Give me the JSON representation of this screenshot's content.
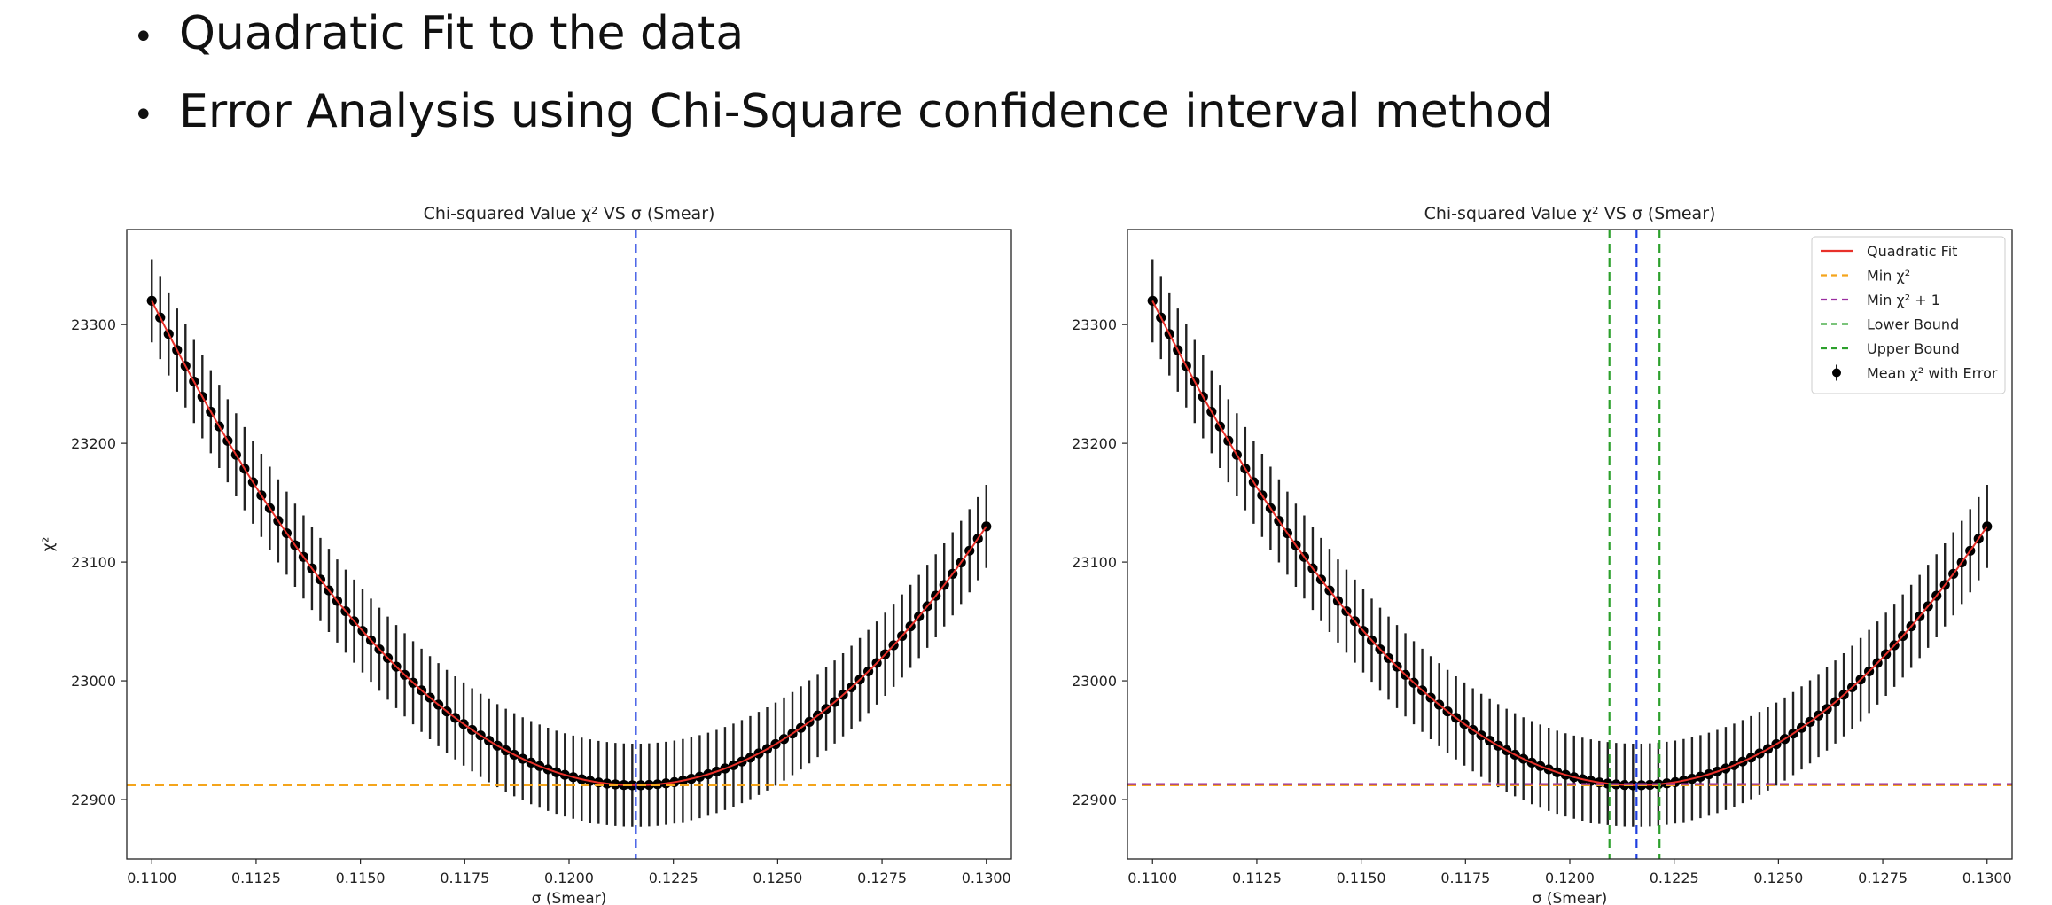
{
  "bullets": [
    "Quadratic Fit to the data",
    "Error Analysis using Chi-Square confidence interval method"
  ],
  "bullet_symbol": "•",
  "colors": {
    "data": "#000000",
    "errorbar": "#222222",
    "fit": "#e8312a",
    "min_line": "#f4a51c",
    "min_plus_one_line": "#9a2ea0",
    "bound_lines": "#2ca02c",
    "center_line": "#1f3fe0"
  },
  "chart_data": [
    {
      "type": "scatter",
      "title": "Chi-squared Value χ² VS σ (Smear)",
      "xlabel": "σ (Smear)",
      "ylabel": "χ²",
      "xlim": [
        0.1094,
        0.1306
      ],
      "ylim": [
        22850,
        23380
      ],
      "xticks": [
        "0.1100",
        "0.1125",
        "0.1150",
        "0.1175",
        "0.1200",
        "0.1225",
        "0.1250",
        "0.1275",
        "0.1300"
      ],
      "yticks": [
        "22900",
        "23000",
        "23100",
        "23200",
        "23300"
      ],
      "grid": false,
      "fit": {
        "model": "quadratic",
        "x_min": 0.1216,
        "chi2_min": 22912,
        "chi2_at_0_110": 23320,
        "chi2_at_0_130": 23130
      },
      "data_series": {
        "name": "Mean χ² with Error",
        "x_start": 0.11,
        "x_end": 0.13,
        "n_points": 100,
        "error": 35
      },
      "vlines": [
        {
          "x": 0.1216,
          "color": "center_line"
        }
      ],
      "hlines": [
        {
          "y": 22912,
          "color": "min_line"
        }
      ],
      "legend": null
    },
    {
      "type": "scatter",
      "title": "Chi-squared Value χ² VS σ (Smear)",
      "xlabel": "σ (Smear)",
      "ylabel": "",
      "xlim": [
        0.1094,
        0.1306
      ],
      "ylim": [
        22850,
        23380
      ],
      "xticks": [
        "0.1100",
        "0.1125",
        "0.1150",
        "0.1175",
        "0.1200",
        "0.1225",
        "0.1250",
        "0.1275",
        "0.1300"
      ],
      "yticks": [
        "22900",
        "23000",
        "23100",
        "23200",
        "23300"
      ],
      "grid": false,
      "fit": {
        "model": "quadratic",
        "x_min": 0.1216,
        "chi2_min": 22912,
        "chi2_at_0_110": 23320,
        "chi2_at_0_130": 23130
      },
      "data_series": {
        "name": "Mean χ² with Error",
        "x_start": 0.11,
        "x_end": 0.13,
        "n_points": 100,
        "error": 35
      },
      "vlines": [
        {
          "x": 0.12095,
          "color": "bound_lines"
        },
        {
          "x": 0.1216,
          "color": "center_line"
        },
        {
          "x": 0.12215,
          "color": "bound_lines"
        }
      ],
      "hlines": [
        {
          "y": 22912,
          "color": "min_line"
        },
        {
          "y": 22913,
          "color": "min_plus_one_line"
        }
      ],
      "legend": {
        "position": "upper right",
        "entries": [
          {
            "label": "Quadratic Fit",
            "style": "solid",
            "color": "fit"
          },
          {
            "label": "Min χ²",
            "style": "dashed",
            "color": "min_line"
          },
          {
            "label": "Min χ² + 1",
            "style": "dashed",
            "color": "min_plus_one_line"
          },
          {
            "label": "Lower Bound",
            "style": "dashed",
            "color": "bound_lines"
          },
          {
            "label": "Upper Bound",
            "style": "dashed",
            "color": "bound_lines"
          },
          {
            "label": "Mean χ² with Error",
            "style": "errorbar",
            "color": "data"
          }
        ]
      }
    }
  ]
}
